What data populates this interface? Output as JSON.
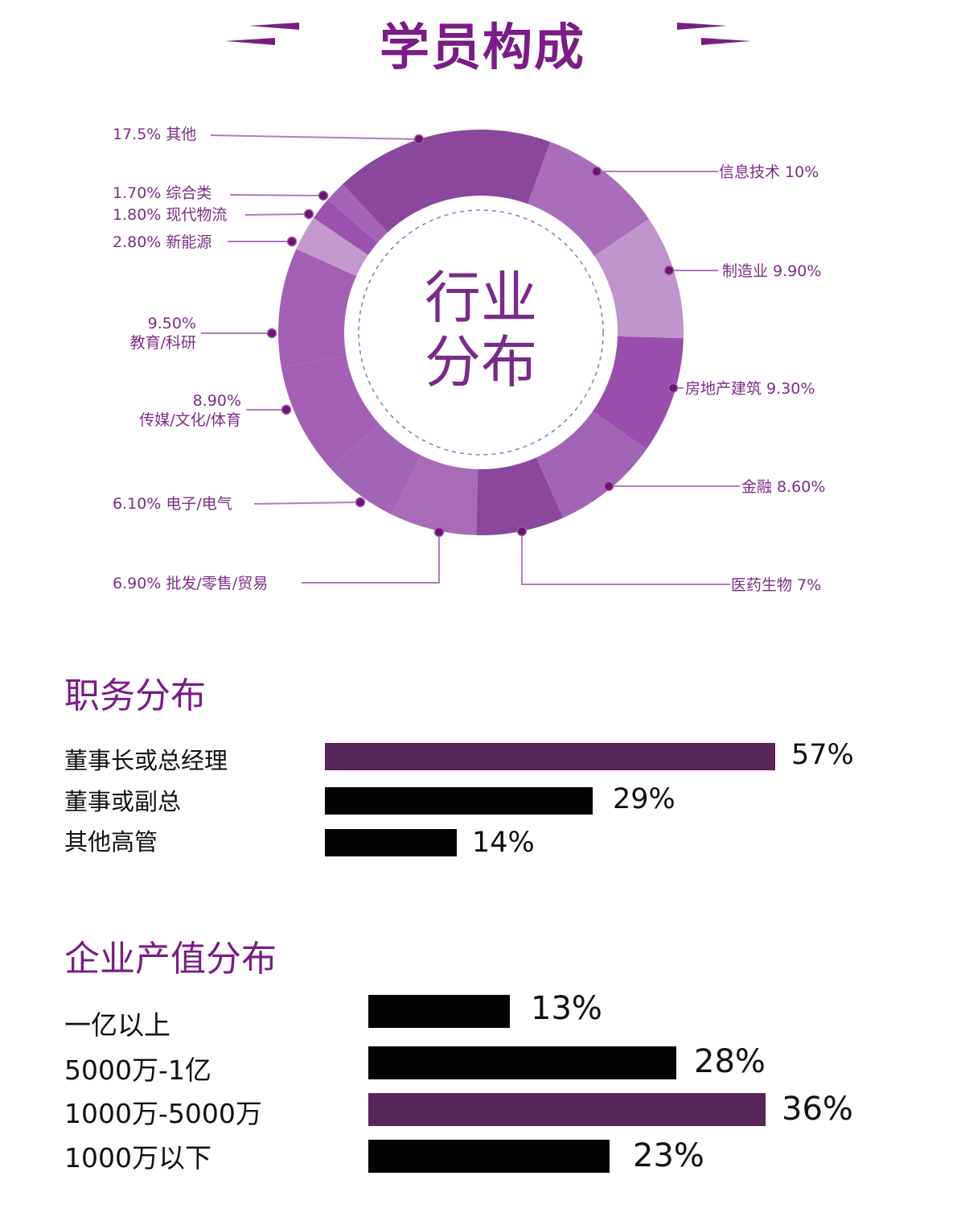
{
  "header": {
    "title": "学员构成"
  },
  "colors": {
    "title_purple": "#7a1d86",
    "bar_highlight": "#58265a",
    "bar_default": "#050203",
    "label_purple": "#7b2f85",
    "dot": "#6b1470",
    "leader_line": "#b07cc0"
  },
  "donut": {
    "center_text_line1": "行业",
    "center_text_line2": "分布"
  },
  "chart_data": [
    {
      "type": "pie",
      "subtype": "donut",
      "title": "行业分布",
      "categories": [
        "信息技术",
        "制造业",
        "房地产建筑",
        "金融",
        "医药生物",
        "批发/零售/贸易",
        "电子/电气",
        "传媒/文化/体育",
        "教育/科研",
        "新能源",
        "现代物流",
        "综合类",
        "其他"
      ],
      "values": [
        10,
        9.9,
        9.3,
        8.6,
        7,
        6.9,
        6.1,
        8.9,
        9.5,
        2.8,
        1.8,
        1.7,
        17.5
      ],
      "labels": [
        "信息技术 10%",
        "制造业 9.90%",
        "房地产建筑 9.30%",
        "金融 8.60%",
        "医药生物 7%",
        "6.90% 批发/零售/贸易",
        "6.10% 电子/电气",
        "8.90% 传媒/文化/体育",
        "9.50% 教育/科研",
        "2.80% 新能源",
        "1.80% 现代物流",
        "1.70% 综合类",
        "17.5% 其他"
      ],
      "segment_colors": [
        "#aa6dba",
        "#c094cc",
        "#9a4fae",
        "#a464b6",
        "#8a479c",
        "#a96bb8",
        "#a264b4",
        "#a35fb4",
        "#a35fb4",
        "#c398cf",
        "#9a52ae",
        "#a664b8",
        "#8a479c"
      ]
    },
    {
      "type": "bar",
      "orientation": "horizontal",
      "title": "职务分布",
      "categories": [
        "董事长或总经理",
        "董事或副总",
        "其他高管"
      ],
      "values": [
        57,
        29,
        14
      ],
      "value_labels": [
        "57%",
        "29%",
        "14%"
      ],
      "highlight_index": 0
    },
    {
      "type": "bar",
      "orientation": "horizontal",
      "title": "企业产值分布",
      "categories": [
        "一亿以上",
        "5000万-1亿",
        "1000万-5000万",
        "1000万以下"
      ],
      "values": [
        13,
        28,
        36,
        23
      ],
      "value_labels": [
        "13%",
        "28%",
        "36%",
        "23%"
      ],
      "highlight_index": 2
    }
  ],
  "donut_labels": {
    "right": [
      {
        "text": "信息技术 10%"
      },
      {
        "text": "制造业 9.90%"
      },
      {
        "text": "房地产建筑 9.30%"
      },
      {
        "text": "金融 8.60%"
      },
      {
        "text": "医药生物 7%"
      }
    ],
    "left": [
      {
        "text": "17.5% 其他"
      },
      {
        "text": "1.70% 综合类"
      },
      {
        "text": "1.80% 现代物流"
      },
      {
        "text": "2.80% 新能源"
      },
      {
        "pct": "9.50%",
        "name": "教育/科研"
      },
      {
        "pct": "8.90%",
        "name": "传媒/文化/体育"
      },
      {
        "text": "6.10% 电子/电气"
      },
      {
        "text": "6.90% 批发/零售/贸易"
      }
    ]
  },
  "position_section": {
    "title": "职务分布",
    "rows": [
      {
        "label": "董事长或总经理",
        "value": "57%"
      },
      {
        "label": "董事或副总",
        "value": "29%"
      },
      {
        "label": "其他高管",
        "value": "14%"
      }
    ]
  },
  "revenue_section": {
    "title": "企业产值分布",
    "rows": [
      {
        "label": "一亿以上",
        "value": "13%"
      },
      {
        "label": "5000万-1亿",
        "value": "28%"
      },
      {
        "label": "1000万-5000万",
        "value": "36%"
      },
      {
        "label": "1000万以下",
        "value": "23%"
      }
    ]
  }
}
